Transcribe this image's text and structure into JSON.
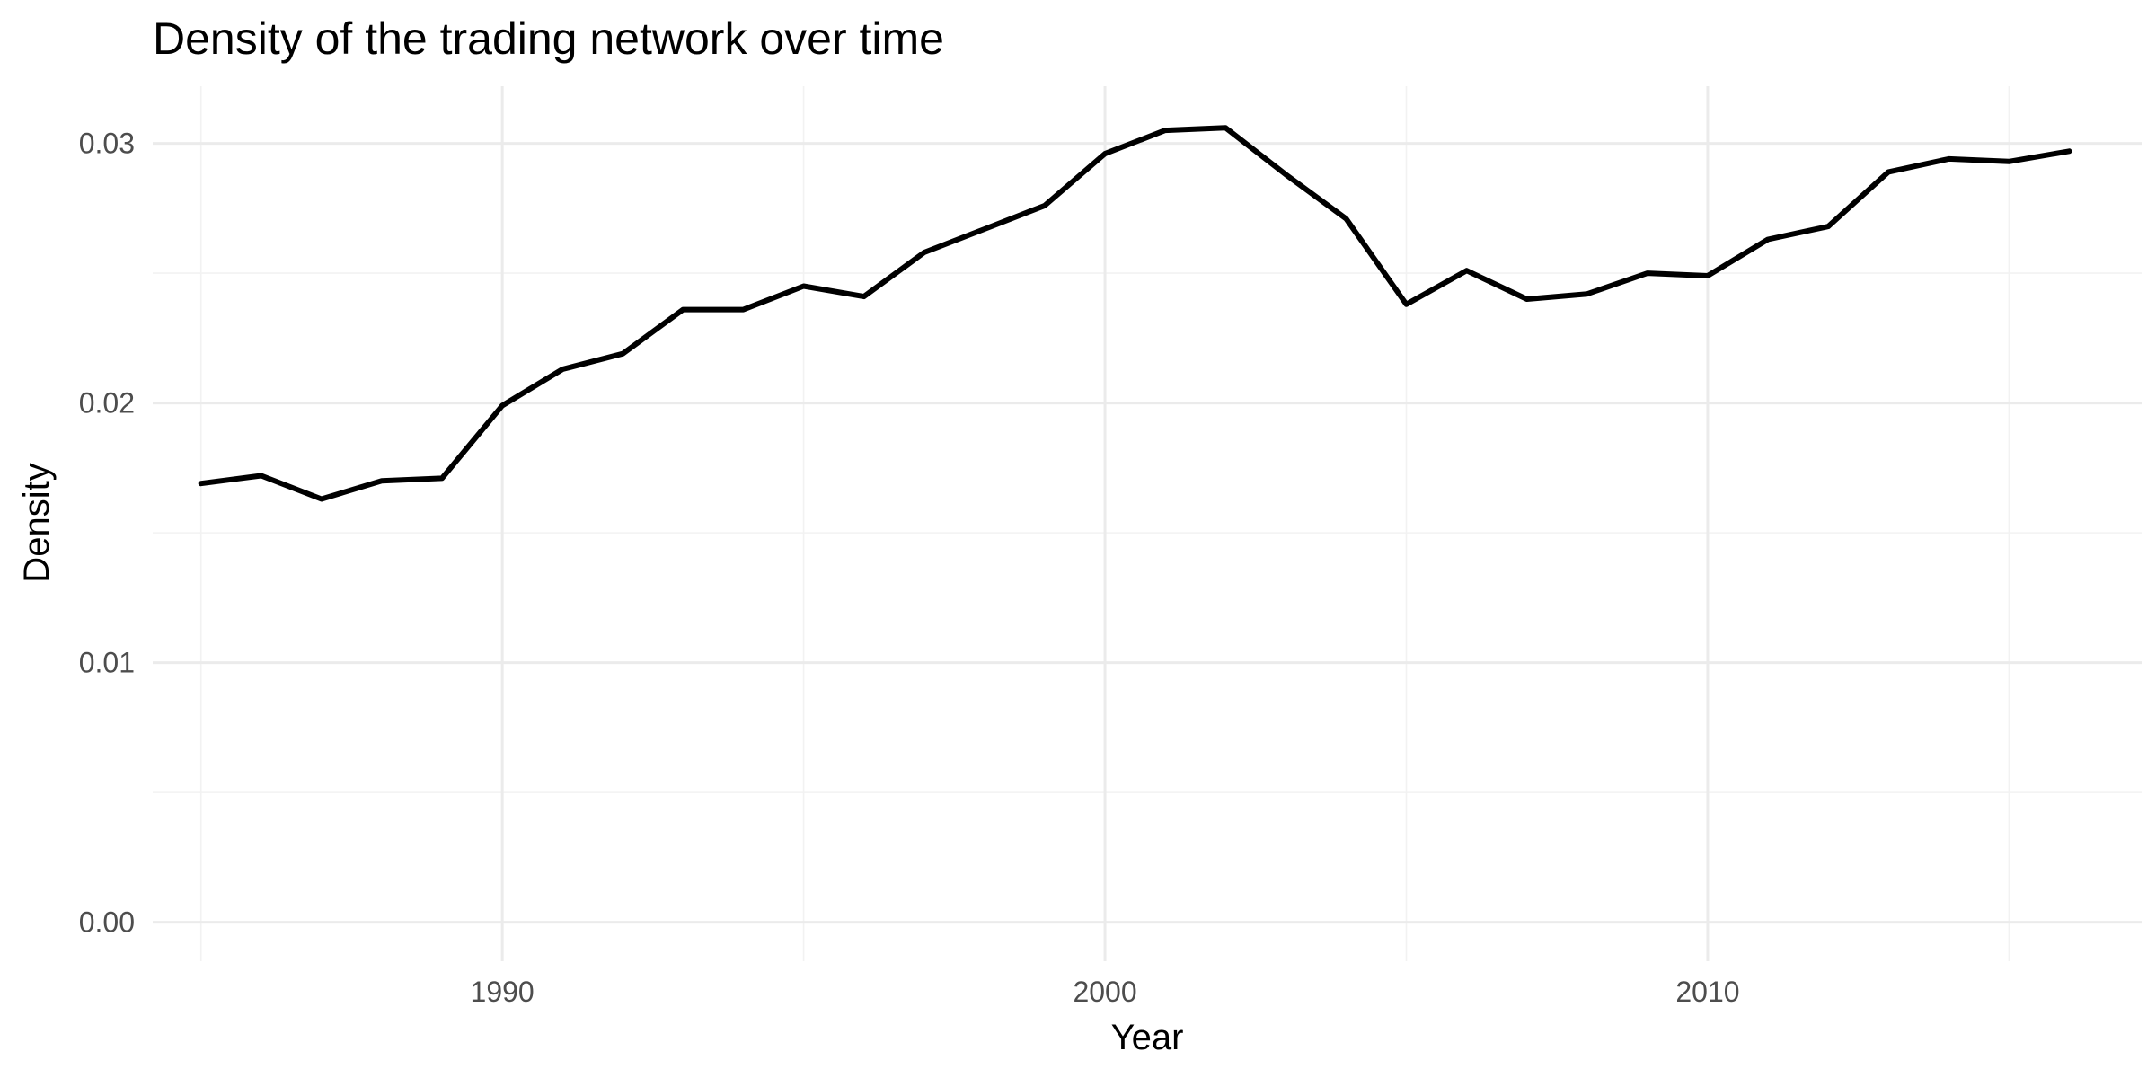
{
  "chart_data": {
    "type": "line",
    "title": "Density of the trading network over time",
    "xlabel": "Year",
    "ylabel": "Density",
    "xlim": [
      1984.2,
      2017.2
    ],
    "ylim": [
      -0.0015,
      0.0322
    ],
    "x_ticks": [
      1990,
      2000,
      2010
    ],
    "x_minor_ticks": [
      1985,
      1995,
      2005,
      2015
    ],
    "y_ticks": [
      0.0,
      0.01,
      0.02,
      0.03
    ],
    "y_tick_labels": [
      "0.00",
      "0.01",
      "0.02",
      "0.03"
    ],
    "y_minor_ticks": [
      0.005,
      0.015,
      0.025
    ],
    "grid": true,
    "series": [
      {
        "name": "Density",
        "color": "#000000",
        "x": [
          1985,
          1986,
          1987,
          1988,
          1989,
          1990,
          1991,
          1992,
          1993,
          1994,
          1995,
          1996,
          1997,
          1998,
          1999,
          2000,
          2001,
          2002,
          2003,
          2004,
          2005,
          2006,
          2007,
          2008,
          2009,
          2010,
          2011,
          2012,
          2013,
          2014,
          2015,
          2016
        ],
        "values": [
          0.0169,
          0.0172,
          0.0163,
          0.017,
          0.0171,
          0.0199,
          0.0213,
          0.0219,
          0.0236,
          0.0236,
          0.0245,
          0.0241,
          0.0258,
          0.0267,
          0.0276,
          0.0296,
          0.0305,
          0.0306,
          0.0288,
          0.0271,
          0.0238,
          0.0251,
          0.024,
          0.0242,
          0.025,
          0.0249,
          0.0263,
          0.0268,
          0.0289,
          0.0294,
          0.0293,
          0.0297
        ]
      }
    ]
  }
}
